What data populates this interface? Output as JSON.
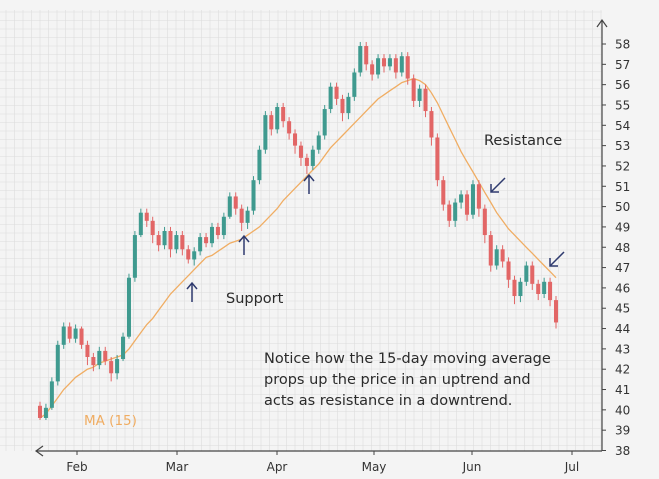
{
  "chart_data": {
    "type": "candlestick",
    "ylim": [
      38,
      59
    ],
    "yticks": [
      38,
      39,
      40,
      41,
      42,
      43,
      44,
      45,
      46,
      47,
      48,
      49,
      50,
      51,
      52,
      53,
      54,
      55,
      56,
      57,
      58
    ],
    "xticks": [
      "Feb",
      "Mar",
      "Apr",
      "May",
      "Jun",
      "Jul"
    ],
    "grid": true,
    "colors": {
      "up": "#3f9a8f",
      "down": "#e26666",
      "ma": "#f0ad63",
      "arrow": "#2e3a6e",
      "grid": "#dcdcdc",
      "axis": "#444444"
    },
    "ma_label": "MA (15)",
    "annotations": {
      "support": "Support",
      "resistance": "Resistance",
      "note": [
        "Notice how the 15-day moving average",
        "props up the price in an uptrend and",
        "acts as resistance in a downtrend."
      ]
    },
    "candles": [
      [
        40.2,
        39.6,
        40.4,
        39.5
      ],
      [
        39.6,
        40.1,
        40.3,
        39.5
      ],
      [
        40.1,
        41.4,
        41.6,
        40.0
      ],
      [
        41.4,
        43.2,
        43.4,
        41.2
      ],
      [
        43.2,
        44.1,
        44.3,
        43.0
      ],
      [
        44.1,
        43.5,
        44.3,
        43.3
      ],
      [
        43.5,
        44.0,
        44.2,
        43.3
      ],
      [
        44.0,
        43.2,
        44.1,
        43.0
      ],
      [
        43.2,
        42.6,
        43.4,
        42.2
      ],
      [
        42.6,
        42.2,
        42.8,
        41.9
      ],
      [
        42.2,
        42.9,
        43.1,
        42.0
      ],
      [
        42.9,
        42.4,
        43.1,
        42.2
      ],
      [
        42.4,
        41.8,
        42.6,
        41.4
      ],
      [
        41.8,
        42.5,
        42.7,
        41.5
      ],
      [
        42.5,
        43.6,
        43.8,
        42.4
      ],
      [
        43.6,
        46.5,
        46.7,
        43.5
      ],
      [
        46.5,
        48.6,
        48.8,
        46.3
      ],
      [
        48.6,
        49.7,
        49.9,
        48.5
      ],
      [
        49.7,
        49.3,
        49.9,
        49.0
      ],
      [
        49.3,
        48.6,
        49.5,
        48.2
      ],
      [
        48.6,
        48.1,
        48.8,
        47.8
      ],
      [
        48.1,
        48.8,
        49.0,
        47.9
      ],
      [
        48.8,
        47.9,
        49.0,
        47.5
      ],
      [
        47.9,
        48.6,
        48.8,
        47.7
      ],
      [
        48.6,
        47.9,
        48.8,
        47.6
      ],
      [
        47.9,
        47.4,
        48.1,
        47.2
      ],
      [
        47.4,
        47.8,
        48.0,
        47.1
      ],
      [
        47.8,
        48.5,
        48.7,
        47.6
      ],
      [
        48.5,
        48.2,
        48.7,
        48.0
      ],
      [
        48.2,
        49.0,
        49.2,
        48.0
      ],
      [
        49.0,
        48.6,
        49.2,
        48.4
      ],
      [
        48.6,
        49.5,
        49.7,
        48.4
      ],
      [
        49.5,
        50.5,
        50.7,
        49.4
      ],
      [
        50.5,
        49.9,
        50.7,
        49.6
      ],
      [
        49.9,
        49.2,
        50.1,
        48.8
      ],
      [
        49.2,
        49.8,
        50.0,
        48.9
      ],
      [
        49.8,
        51.3,
        51.5,
        49.6
      ],
      [
        51.3,
        52.8,
        53.0,
        51.1
      ],
      [
        52.8,
        54.5,
        54.7,
        52.6
      ],
      [
        54.5,
        53.8,
        54.7,
        53.5
      ],
      [
        53.8,
        54.9,
        55.1,
        53.6
      ],
      [
        54.9,
        54.2,
        55.1,
        53.9
      ],
      [
        54.2,
        53.6,
        54.4,
        53.3
      ],
      [
        53.6,
        53.0,
        53.8,
        52.6
      ],
      [
        53.0,
        52.4,
        53.2,
        52.0
      ],
      [
        52.4,
        52.0,
        52.6,
        51.6
      ],
      [
        52.0,
        52.8,
        53.0,
        51.8
      ],
      [
        52.8,
        53.5,
        53.7,
        52.6
      ],
      [
        53.5,
        54.8,
        55.0,
        53.3
      ],
      [
        54.8,
        55.9,
        56.1,
        54.6
      ],
      [
        55.9,
        55.3,
        56.1,
        55.0
      ],
      [
        55.3,
        54.6,
        55.5,
        54.2
      ],
      [
        54.6,
        55.4,
        55.6,
        54.3
      ],
      [
        55.4,
        56.6,
        56.8,
        55.2
      ],
      [
        56.6,
        57.9,
        58.1,
        56.4
      ],
      [
        57.9,
        57.0,
        58.1,
        56.7
      ],
      [
        57.0,
        56.5,
        57.2,
        56.2
      ],
      [
        56.5,
        57.3,
        57.5,
        56.3
      ],
      [
        57.3,
        56.9,
        57.5,
        56.6
      ],
      [
        56.9,
        57.3,
        57.5,
        56.7
      ],
      [
        57.3,
        56.6,
        57.5,
        56.3
      ],
      [
        56.6,
        57.4,
        57.6,
        56.4
      ],
      [
        57.4,
        56.3,
        57.6,
        56.0
      ],
      [
        56.3,
        55.2,
        56.5,
        54.9
      ],
      [
        55.2,
        55.8,
        56.0,
        54.9
      ],
      [
        55.8,
        54.7,
        56.0,
        54.4
      ],
      [
        54.7,
        53.4,
        54.9,
        53.0
      ],
      [
        53.4,
        51.3,
        53.6,
        51.0
      ],
      [
        51.3,
        50.1,
        51.5,
        49.8
      ],
      [
        50.1,
        49.3,
        50.3,
        49.0
      ],
      [
        49.3,
        50.2,
        50.4,
        49.0
      ],
      [
        50.2,
        50.6,
        50.8,
        49.9
      ],
      [
        50.6,
        49.6,
        50.8,
        49.3
      ],
      [
        49.6,
        51.1,
        51.3,
        49.4
      ],
      [
        51.1,
        49.9,
        51.3,
        49.5
      ],
      [
        49.9,
        48.6,
        50.1,
        48.2
      ],
      [
        48.6,
        47.1,
        48.8,
        46.8
      ],
      [
        47.1,
        47.9,
        48.1,
        46.9
      ],
      [
        47.9,
        47.3,
        48.1,
        47.0
      ],
      [
        47.3,
        46.4,
        47.5,
        46.0
      ],
      [
        46.4,
        45.6,
        46.6,
        45.2
      ],
      [
        45.6,
        46.3,
        46.5,
        45.3
      ],
      [
        46.3,
        47.1,
        47.3,
        46.1
      ],
      [
        47.1,
        46.2,
        47.3,
        45.9
      ],
      [
        46.2,
        45.7,
        46.4,
        45.4
      ],
      [
        45.7,
        46.3,
        46.5,
        45.5
      ],
      [
        46.3,
        45.4,
        46.5,
        45.1
      ],
      [
        45.4,
        44.3,
        45.6,
        44.0
      ]
    ],
    "ma": [
      39.6,
      39.8,
      40.2,
      40.6,
      41.0,
      41.3,
      41.6,
      41.8,
      42.0,
      42.1,
      42.3,
      42.4,
      42.5,
      42.6,
      42.7,
      43.0,
      43.4,
      43.8,
      44.2,
      44.5,
      44.9,
      45.3,
      45.7,
      46.0,
      46.3,
      46.6,
      46.9,
      47.2,
      47.5,
      47.6,
      47.8,
      48.0,
      48.2,
      48.3,
      48.4,
      48.6,
      48.8,
      49.0,
      49.3,
      49.6,
      49.9,
      50.3,
      50.6,
      50.9,
      51.2,
      51.5,
      51.8,
      52.1,
      52.5,
      52.9,
      53.2,
      53.5,
      53.8,
      54.1,
      54.4,
      54.7,
      55.0,
      55.3,
      55.5,
      55.7,
      55.9,
      56.1,
      56.2,
      56.3,
      56.2,
      56.0,
      55.6,
      55.1,
      54.5,
      53.9,
      53.3,
      52.7,
      52.2,
      51.7,
      51.2,
      50.7,
      50.2,
      49.7,
      49.3,
      48.9,
      48.6,
      48.3,
      48.0,
      47.7,
      47.4,
      47.1,
      46.8,
      46.5
    ]
  }
}
